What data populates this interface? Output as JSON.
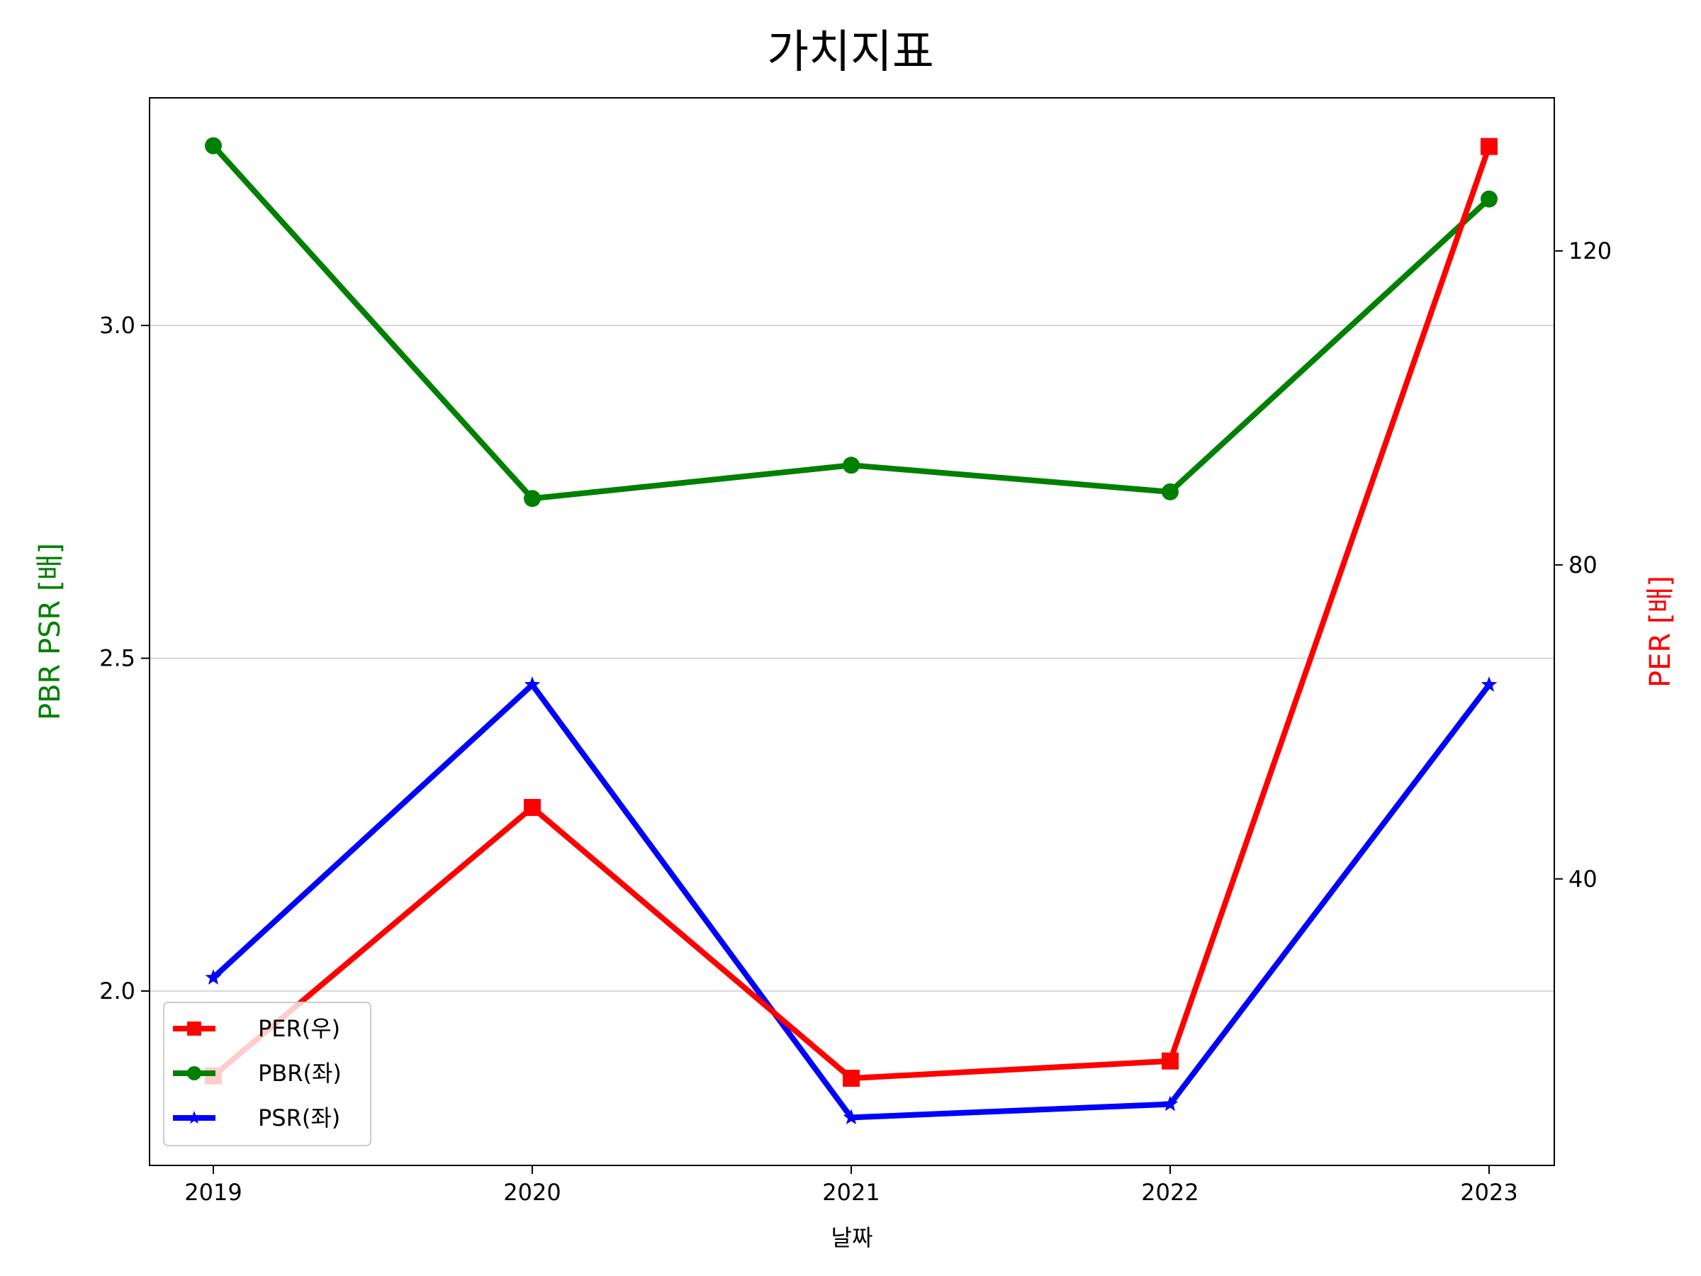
{
  "chart_data": {
    "type": "line",
    "title": "가치지표",
    "xlabel": "날짜",
    "ylabel_left": "PBR PSR [배]",
    "ylabel_right": "PER [배]",
    "x": [
      "2019",
      "2020",
      "2021",
      "2022",
      "2023"
    ],
    "ylim_left": [
      1.738,
      3.342
    ],
    "yticks_left": [
      "2.0",
      "2.5",
      "3.0"
    ],
    "ylim_right": [
      3.5,
      139.5
    ],
    "yticks_right": [
      "40",
      "80",
      "120"
    ],
    "grid": "y-left",
    "legend_position": "lower-left",
    "series": [
      {
        "name": "PER(우)",
        "axis": "right",
        "color": "#ff0000",
        "marker": "square",
        "values": [
          14.9,
          49.1,
          14.6,
          16.8,
          133.3
        ]
      },
      {
        "name": "PBR(좌)",
        "axis": "left",
        "color": "#008000",
        "marker": "circle",
        "values": [
          3.27,
          2.74,
          2.79,
          2.75,
          3.19
        ]
      },
      {
        "name": "PSR(좌)",
        "axis": "left",
        "color": "#0000ff",
        "marker": "star",
        "values": [
          2.02,
          2.46,
          1.81,
          1.83,
          2.46
        ]
      }
    ]
  }
}
